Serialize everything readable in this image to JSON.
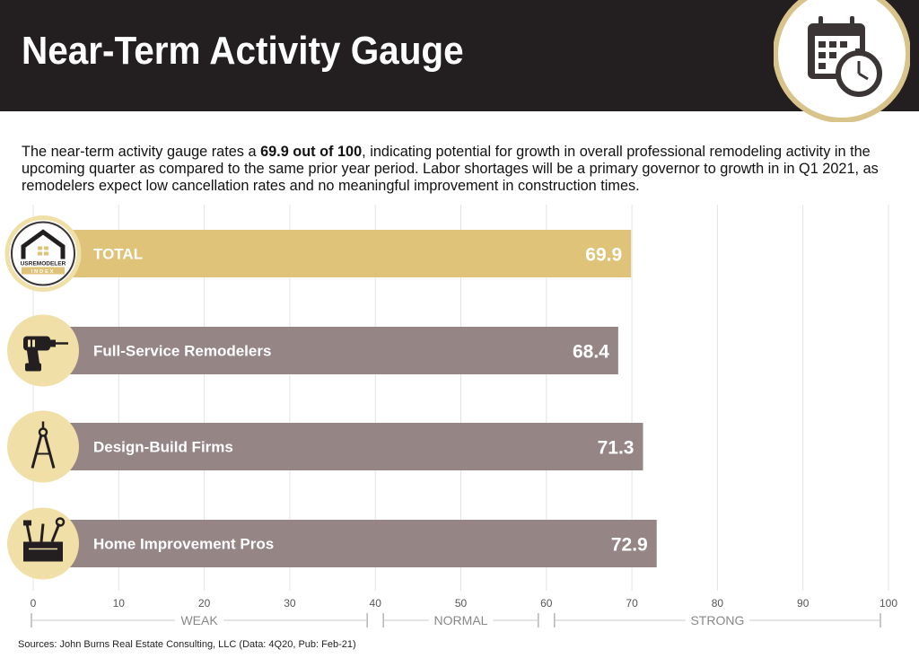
{
  "title": "Near-Term Activity Gauge",
  "intro": {
    "before": "The near-term activity gauge rates a ",
    "highlight": "69.9 out of 100",
    "after": ", indicating potential for growth in overall professional remodeling activity in the upcoming quarter as compared to the same prior year period. Labor shortages will be a primary governor to growth in in Q1 2021, as remodelers expect low cancellation rates and no meaningful improvement in construction times."
  },
  "logo_text": {
    "line1": "USREMODELER",
    "line2": "INDEX"
  },
  "chart_data": {
    "type": "bar",
    "orientation": "horizontal",
    "categories": [
      "TOTAL",
      "Full-Service Remodelers",
      "Design-Build Firms",
      "Home Improvement Pros"
    ],
    "values": [
      69.9,
      68.4,
      71.3,
      72.9
    ],
    "value_labels": [
      "69.9",
      "68.4",
      "71.3",
      "72.9"
    ],
    "icons": [
      "us-remodeler-index-logo-icon",
      "drill-icon",
      "compass-icon",
      "toolbox-icon"
    ],
    "xlim": [
      0,
      100
    ],
    "ticks": [
      0,
      10,
      20,
      30,
      40,
      50,
      60,
      70,
      80,
      90,
      100
    ],
    "grid": true,
    "zones": [
      {
        "label": "WEAK",
        "from": 0,
        "to": 40
      },
      {
        "label": "NORMAL",
        "from": 40,
        "to": 60
      },
      {
        "label": "STRONG",
        "from": 60,
        "to": 100
      }
    ],
    "colors": {
      "total": "#dfc378",
      "segment": "#968585",
      "icon_circle": "#f1dfa8",
      "header": "#231f20"
    }
  },
  "sources": "Sources: John Burns Real Estate Consulting, LLC (Data: 4Q20, Pub: Feb-21)"
}
